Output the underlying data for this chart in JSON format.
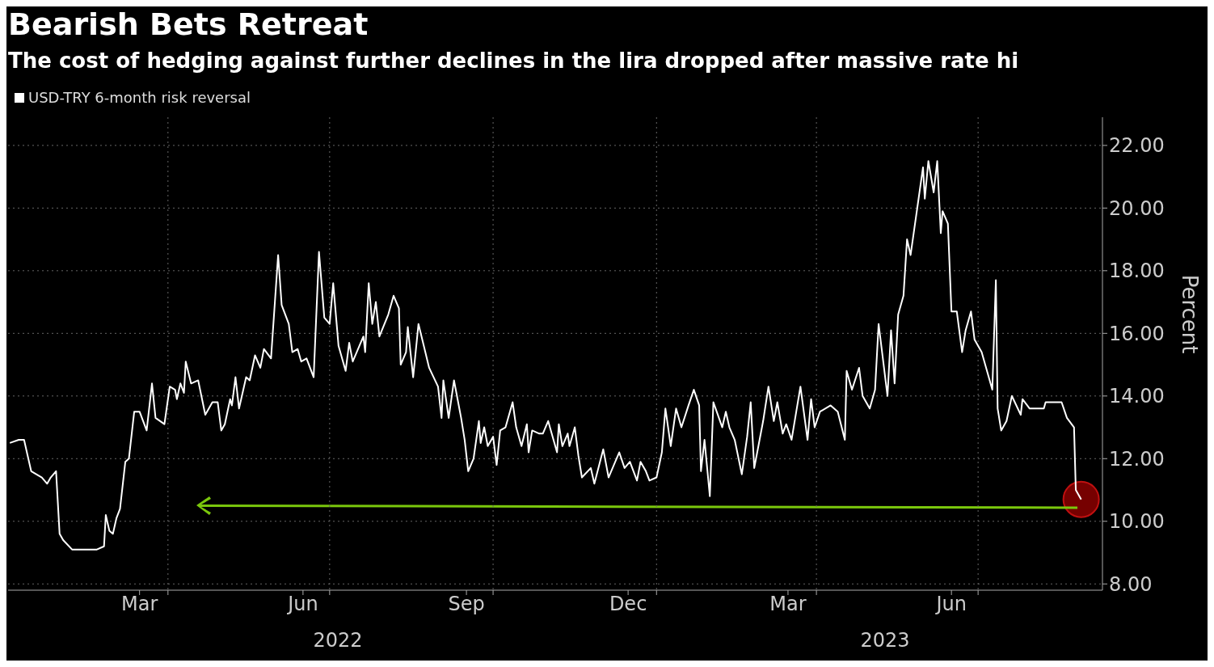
{
  "chart_data": {
    "type": "line",
    "title": "Bearish Bets Retreat",
    "subtitle": "The cost of hedging against further declines in the lira dropped after massive rate hi",
    "ylabel": "Percent",
    "legend": "top left",
    "grid": true,
    "xlim": [
      "2022-01-01",
      "2023-09-09"
    ],
    "xticks": [
      {
        "value": "2022-03-16",
        "label": "Mar"
      },
      {
        "value": "2022-04-01",
        "label": null
      },
      {
        "value": "2022-06-16",
        "label": "Jun"
      },
      {
        "value": "2022-07-01",
        "label": null
      },
      {
        "value": "2022-09-16",
        "label": "Sep"
      },
      {
        "value": "2022-10-01",
        "label": null
      },
      {
        "value": "2022-12-16",
        "label": "Dec"
      },
      {
        "value": "2023-01-01",
        "label": null
      },
      {
        "value": "2023-03-16",
        "label": "Mar"
      },
      {
        "value": "2023-04-01",
        "label": null
      },
      {
        "value": "2023-06-16",
        "label": "Jun"
      },
      {
        "value": "2023-07-01",
        "label": null
      }
    ],
    "ylim": [
      7.8,
      22.9
    ],
    "yticks": [
      {
        "value": 8,
        "label": "8.00"
      },
      {
        "value": 10,
        "label": "10.00"
      },
      {
        "value": 12,
        "label": "12.00"
      },
      {
        "value": 14,
        "label": "14.00"
      },
      {
        "value": 16,
        "label": "16.00"
      },
      {
        "value": 18,
        "label": "18.00"
      },
      {
        "value": 20,
        "label": "20.00"
      },
      {
        "value": 22,
        "label": "22.00"
      }
    ],
    "annotations": [
      "2022",
      "2023"
    ],
    "series": [
      {
        "name": "USD-TRY 6-month risk reversal",
        "color": "#ffffff",
        "x": [
          "2022-01-02",
          "2022-01-07",
          "2022-01-10",
          "2022-01-12",
          "2022-01-14",
          "2022-01-20",
          "2022-01-23",
          "2022-01-25",
          "2022-01-28",
          "2022-01-30",
          "2022-02-01",
          "2022-02-06",
          "2022-02-13",
          "2022-02-20",
          "2022-02-24",
          "2022-02-25",
          "2022-02-27",
          "2022-03-01",
          "2022-03-03",
          "2022-03-05",
          "2022-03-08",
          "2022-03-10",
          "2022-03-13",
          "2022-03-16",
          "2022-03-20",
          "2022-03-23",
          "2022-03-25",
          "2022-03-30",
          "2022-04-02",
          "2022-04-05",
          "2022-04-06",
          "2022-04-08",
          "2022-04-10",
          "2022-04-11",
          "2022-04-14",
          "2022-04-18",
          "2022-04-22",
          "2022-04-26",
          "2022-04-29",
          "2022-05-01",
          "2022-05-03",
          "2022-05-06",
          "2022-05-07",
          "2022-05-09",
          "2022-05-11",
          "2022-05-15",
          "2022-05-17",
          "2022-05-20",
          "2022-05-23",
          "2022-05-25",
          "2022-05-29",
          "2022-06-02",
          "2022-06-04",
          "2022-06-08",
          "2022-06-10",
          "2022-06-13",
          "2022-06-15",
          "2022-06-18",
          "2022-06-22",
          "2022-06-25",
          "2022-06-28",
          "2022-07-01",
          "2022-07-03",
          "2022-07-06",
          "2022-07-10",
          "2022-07-12",
          "2022-07-14",
          "2022-07-20",
          "2022-07-21",
          "2022-07-23",
          "2022-07-25",
          "2022-07-27",
          "2022-07-29",
          "2022-08-03",
          "2022-08-06",
          "2022-08-09",
          "2022-08-10",
          "2022-08-13",
          "2022-08-14",
          "2022-08-17",
          "2022-08-20",
          "2022-08-23",
          "2022-08-26",
          "2022-08-31",
          "2022-09-02",
          "2022-09-03",
          "2022-09-06",
          "2022-09-09",
          "2022-09-13",
          "2022-09-15",
          "2022-09-17",
          "2022-09-20",
          "2022-09-23",
          "2022-09-24",
          "2022-09-26",
          "2022-09-28",
          "2022-10-01",
          "2022-10-03",
          "2022-10-05",
          "2022-10-08",
          "2022-10-10",
          "2022-10-12",
          "2022-10-14",
          "2022-10-17",
          "2022-10-20",
          "2022-10-21",
          "2022-10-23",
          "2022-10-27",
          "2022-10-29",
          "2022-11-01",
          "2022-11-06",
          "2022-11-07",
          "2022-11-09",
          "2022-11-12",
          "2022-11-13",
          "2022-11-16",
          "2022-11-18",
          "2022-11-20",
          "2022-11-25",
          "2022-11-27",
          "2022-12-02",
          "2022-12-05",
          "2022-12-11",
          "2022-12-14",
          "2022-12-17",
          "2022-12-21",
          "2022-12-23",
          "2022-12-26",
          "2022-12-28",
          "2023-01-01",
          "2023-01-04",
          "2023-01-06",
          "2023-01-09",
          "2023-01-12",
          "2023-01-15",
          "2023-01-19",
          "2023-01-22",
          "2023-01-25",
          "2023-01-26",
          "2023-01-28",
          "2023-01-31",
          "2023-02-02",
          "2023-02-07",
          "2023-02-09",
          "2023-02-11",
          "2023-02-14",
          "2023-02-18",
          "2023-02-21",
          "2023-02-23",
          "2023-02-25",
          "2023-02-28",
          "2023-03-02",
          "2023-03-05",
          "2023-03-08",
          "2023-03-10",
          "2023-03-13",
          "2023-03-15",
          "2023-03-18",
          "2023-03-23",
          "2023-03-27",
          "2023-03-29",
          "2023-03-31",
          "2023-04-03",
          "2023-04-09",
          "2023-04-13",
          "2023-04-17",
          "2023-04-18",
          "2023-04-21",
          "2023-04-25",
          "2023-04-27",
          "2023-05-01",
          "2023-05-04",
          "2023-05-06",
          "2023-05-11",
          "2023-05-13",
          "2023-05-15",
          "2023-05-17",
          "2023-05-20",
          "2023-05-22",
          "2023-05-24",
          "2023-05-26",
          "2023-05-31",
          "2023-06-01",
          "2023-06-03",
          "2023-06-06",
          "2023-06-08",
          "2023-06-10",
          "2023-06-11",
          "2023-06-14",
          "2023-06-16",
          "2023-06-19",
          "2023-06-22",
          "2023-06-24",
          "2023-06-27",
          "2023-06-29",
          "2023-07-03",
          "2023-07-06",
          "2023-07-09",
          "2023-07-11",
          "2023-07-12",
          "2023-07-14",
          "2023-07-17",
          "2023-07-20",
          "2023-07-25",
          "2023-07-26",
          "2023-07-30",
          "2023-08-07",
          "2023-08-08",
          "2023-08-13",
          "2023-08-17",
          "2023-08-20",
          "2023-08-24",
          "2023-08-25",
          "2023-08-28"
        ],
        "values": [
          12.5,
          12.6,
          12.6,
          12.1,
          11.6,
          11.4,
          11.2,
          11.4,
          11.6,
          9.6,
          9.4,
          9.1,
          9.1,
          9.1,
          9.2,
          10.2,
          9.7,
          9.6,
          10.1,
          10.4,
          11.9,
          12.0,
          13.5,
          13.5,
          12.9,
          14.4,
          13.3,
          13.1,
          14.3,
          14.2,
          13.9,
          14.4,
          14.1,
          15.1,
          14.4,
          14.5,
          13.4,
          13.8,
          13.8,
          12.9,
          13.1,
          13.9,
          13.7,
          14.6,
          13.6,
          14.6,
          14.5,
          15.3,
          14.9,
          15.5,
          15.2,
          18.5,
          16.9,
          16.3,
          15.4,
          15.5,
          15.1,
          15.2,
          14.6,
          18.6,
          16.5,
          16.3,
          17.6,
          15.6,
          14.8,
          15.7,
          15.1,
          15.9,
          15.4,
          17.6,
          16.3,
          17.0,
          15.9,
          16.6,
          17.2,
          16.8,
          15.0,
          15.4,
          16.2,
          14.6,
          16.3,
          15.6,
          14.9,
          14.3,
          13.3,
          14.5,
          13.3,
          14.5,
          13.3,
          12.6,
          11.6,
          12.0,
          13.2,
          12.5,
          13.0,
          12.4,
          12.7,
          11.8,
          12.9,
          13.0,
          13.4,
          13.8,
          13.0,
          12.4,
          13.1,
          12.2,
          12.9,
          12.8,
          12.8,
          13.2,
          12.2,
          13.1,
          12.4,
          12.8,
          12.4,
          13.0,
          12.1,
          11.4,
          11.7,
          11.2,
          12.3,
          11.4,
          12.2,
          11.7,
          11.9,
          11.3,
          11.9,
          11.6,
          11.3,
          11.4,
          12.2,
          13.6,
          12.4,
          13.6,
          13.0,
          13.7,
          14.2,
          13.7,
          11.6,
          12.6,
          10.8,
          13.8,
          13.0,
          13.5,
          13.0,
          12.6,
          11.5,
          12.7,
          13.8,
          11.7,
          12.6,
          13.2,
          14.3,
          13.2,
          13.8,
          12.8,
          13.1,
          12.6,
          14.3,
          12.6,
          13.9,
          13.0,
          13.5,
          13.7,
          13.5,
          12.6,
          14.8,
          14.2,
          14.9,
          14.0,
          13.6,
          14.2,
          16.3,
          14.0,
          16.1,
          14.4,
          16.6,
          17.2,
          19.0,
          18.5,
          19.3,
          21.3,
          20.3,
          21.5,
          20.5,
          21.5,
          19.2,
          19.9,
          19.5,
          16.7,
          16.7,
          15.4,
          16.1,
          16.7,
          15.8,
          15.4,
          14.8,
          14.2,
          17.7,
          13.6,
          12.9,
          13.2,
          14.0,
          13.4,
          13.9,
          13.6,
          13.6,
          13.8,
          13.8,
          13.8,
          13.3,
          13.0,
          11.0,
          10.7
        ]
      }
    ]
  }
}
